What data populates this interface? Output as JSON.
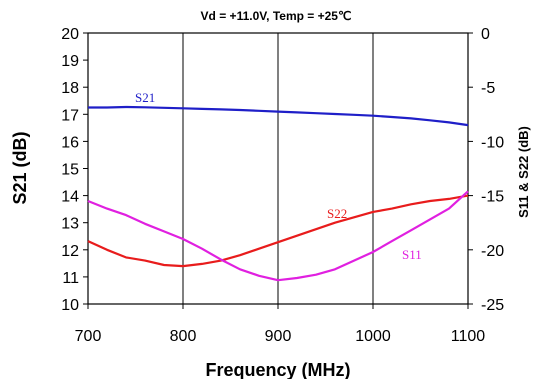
{
  "chart_data": {
    "type": "line",
    "title": "Vd = +11.0V, Temp = +25℃",
    "xlabel": "Frequency (MHz)",
    "ylabel": "S21 (dB)",
    "y2label": "S11 & S22 (dB)",
    "xlim": [
      700,
      1100
    ],
    "ylim": [
      10,
      20
    ],
    "y2lim": [
      -25,
      0
    ],
    "x_ticks": [
      "700",
      "800",
      "900",
      "1000",
      "1100"
    ],
    "y_ticks": [
      "10",
      "11",
      "12",
      "13",
      "14",
      "15",
      "16",
      "17",
      "18",
      "19",
      "20"
    ],
    "y2_ticks": [
      "-25",
      "-20",
      "-15",
      "-10",
      "-5",
      "0"
    ],
    "grid": "vertical",
    "series": [
      {
        "name": "S21",
        "axis": "left",
        "color": "#1f1fc8",
        "x": [
          700,
          720,
          740,
          760,
          780,
          800,
          820,
          840,
          860,
          880,
          900,
          920,
          940,
          960,
          980,
          1000,
          1020,
          1040,
          1060,
          1080,
          1100
        ],
        "y": [
          17.25,
          17.25,
          17.27,
          17.26,
          17.24,
          17.22,
          17.2,
          17.18,
          17.16,
          17.13,
          17.1,
          17.07,
          17.04,
          17.01,
          16.98,
          16.95,
          16.9,
          16.85,
          16.78,
          16.7,
          16.6
        ]
      },
      {
        "name": "S22",
        "axis": "right",
        "color": "#e81c1c",
        "x": [
          700,
          720,
          740,
          760,
          780,
          800,
          820,
          840,
          860,
          880,
          900,
          920,
          940,
          960,
          980,
          1000,
          1020,
          1040,
          1060,
          1080,
          1100
        ],
        "y": [
          -19.2,
          -20.0,
          -20.7,
          -21.0,
          -21.4,
          -21.5,
          -21.3,
          -21.0,
          -20.5,
          -19.9,
          -19.3,
          -18.7,
          -18.1,
          -17.5,
          -17.0,
          -16.5,
          -16.2,
          -15.8,
          -15.5,
          -15.3,
          -15.0
        ]
      },
      {
        "name": "S11",
        "axis": "right",
        "color": "#e020e0",
        "x": [
          700,
          720,
          740,
          760,
          780,
          800,
          820,
          840,
          860,
          880,
          900,
          920,
          940,
          960,
          980,
          1000,
          1020,
          1040,
          1060,
          1080,
          1100
        ],
        "y": [
          -15.5,
          -16.2,
          -16.8,
          -17.6,
          -18.3,
          -19.0,
          -19.9,
          -20.9,
          -21.8,
          -22.4,
          -22.8,
          -22.6,
          -22.3,
          -21.8,
          -21.0,
          -20.2,
          -19.2,
          -18.2,
          -17.2,
          -16.2,
          -14.6
        ]
      }
    ]
  }
}
